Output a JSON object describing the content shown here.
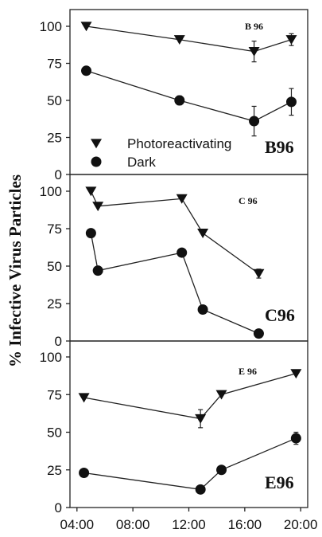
{
  "ylabel": "% Infective Virus Particles",
  "x_tick_labels": [
    "04:00",
    "08:00",
    "12:00",
    "16:00",
    "20:00"
  ],
  "legend": {
    "photo_label": "Photoreactivating",
    "dark_label": "Dark"
  },
  "chart_data": [
    {
      "type": "line",
      "tag": "B 96",
      "label": "B96",
      "y_tick_labels": [
        "0",
        "25",
        "50",
        "75",
        "100"
      ],
      "ylim": [
        0,
        100
      ],
      "xlim_hours": [
        3.5,
        20.5
      ],
      "series": [
        {
          "name": "Photoreactivating",
          "marker": "triangle-down",
          "x": [
            "04:40",
            "11:20",
            "16:40",
            "19:20"
          ],
          "y": [
            100,
            91,
            83,
            91
          ],
          "err": [
            0,
            0,
            7,
            4
          ]
        },
        {
          "name": "Dark",
          "marker": "circle",
          "x": [
            "04:40",
            "11:20",
            "16:40",
            "19:20"
          ],
          "y": [
            70,
            50,
            36,
            49
          ],
          "err": [
            0,
            3,
            10,
            9
          ]
        }
      ]
    },
    {
      "type": "line",
      "tag": "C 96",
      "label": "C96",
      "y_tick_labels": [
        "0",
        "25",
        "50",
        "75",
        "100"
      ],
      "ylim": [
        0,
        100
      ],
      "xlim_hours": [
        3.5,
        20.5
      ],
      "series": [
        {
          "name": "Photoreactivating",
          "marker": "triangle-down",
          "x": [
            "05:00",
            "05:30",
            "11:30",
            "13:00",
            "17:00"
          ],
          "y": [
            100,
            90,
            95,
            72,
            45
          ],
          "err": [
            0,
            0,
            0,
            0,
            3
          ]
        },
        {
          "name": "Dark",
          "marker": "circle",
          "x": [
            "05:00",
            "05:30",
            "11:30",
            "13:00",
            "17:00"
          ],
          "y": [
            72,
            47,
            59,
            21,
            5
          ],
          "err": [
            0,
            0,
            0,
            0,
            0
          ]
        }
      ]
    },
    {
      "type": "line",
      "tag": "E 96",
      "label": "E96",
      "y_tick_labels": [
        "0",
        "25",
        "50",
        "75",
        "100"
      ],
      "ylim": [
        0,
        100
      ],
      "xlim_hours": [
        3.5,
        20.5
      ],
      "series": [
        {
          "name": "Photoreactivating",
          "marker": "triangle-down",
          "x": [
            "04:30",
            "12:50",
            "14:20",
            "19:40"
          ],
          "y": [
            73,
            59,
            75,
            89
          ],
          "err": [
            0,
            6,
            0,
            0
          ]
        },
        {
          "name": "Dark",
          "marker": "circle",
          "x": [
            "04:30",
            "12:50",
            "14:20",
            "19:40"
          ],
          "y": [
            23,
            12,
            25,
            46
          ],
          "err": [
            0,
            0,
            0,
            4
          ]
        }
      ]
    }
  ]
}
